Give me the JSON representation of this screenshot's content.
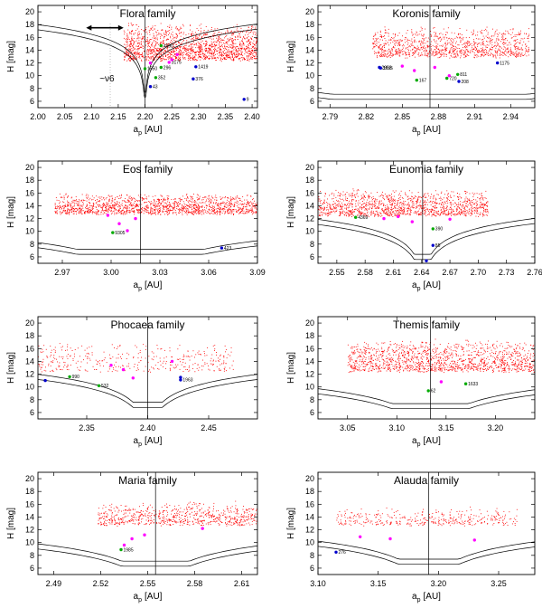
{
  "figure": {
    "description_free": true
  },
  "chart_data": [
    {
      "type": "scatter",
      "title": "Flora family",
      "xlabel_main": "a",
      "xlabel_sub": "p",
      "xlabel_unit": "[AU]",
      "ylabel": "H [mag]",
      "xlim": [
        2.0,
        2.41
      ],
      "ylim": [
        5,
        21
      ],
      "xticks": [
        2.0,
        2.05,
        2.1,
        2.15,
        2.2,
        2.25,
        2.3,
        2.35,
        2.4
      ],
      "xtick_labels": [
        "2.00",
        "2.05",
        "2.10",
        "2.15",
        "2.20",
        "2.25",
        "2.30",
        "2.35",
        "2.40"
      ],
      "yticks": [
        6,
        8,
        10,
        12,
        14,
        16,
        18,
        20
      ],
      "ytick_labels": [
        "6",
        "8",
        "10",
        "12",
        "14",
        "16",
        "18",
        "20"
      ],
      "resonance_a": 2.2,
      "cloud": {
        "xmin": 2.16,
        "xmax": 2.41,
        "ymin": 12.5,
        "ymax": 18.3,
        "n": 1700,
        "seed": 11
      },
      "v_curves": {
        "c": 2.2,
        "k": 4.4,
        "h0": 6.6,
        "offsets": [
          0,
          0.8
        ],
        "alpha": 0.52
      },
      "extra_annotations": [
        {
          "text": "~ν6",
          "x": 2.115,
          "y": 9.1,
          "size": 10
        },
        {
          "text": "arrow",
          "x1": 2.09,
          "x2": 2.16,
          "y": 17.5
        }
      ],
      "dashed_x": 2.135,
      "points": [
        {
          "x": 2.21,
          "y": 8.3,
          "color": "#0000cc",
          "label": "43"
        },
        {
          "x": 2.29,
          "y": 9.5,
          "color": "#0000cc",
          "label": "376"
        },
        {
          "x": 2.295,
          "y": 11.4,
          "color": "#0000cc",
          "label": "1419"
        },
        {
          "x": 2.385,
          "y": 6.3,
          "color": "#0000cc",
          "label": "9"
        },
        {
          "x": 2.22,
          "y": 9.7,
          "color": "#00aa00",
          "label": "352"
        },
        {
          "x": 2.2,
          "y": 11.1,
          "color": "#00aa00",
          "label": "1550"
        },
        {
          "x": 2.23,
          "y": 11.3,
          "color": "#00aa00",
          "label": "296"
        },
        {
          "x": 2.23,
          "y": 14.7,
          "color": "#00aa00",
          "label": "4590"
        },
        {
          "x": 2.245,
          "y": 12.1,
          "color": "#ff00ff",
          "label": "3175"
        },
        {
          "x": 2.25,
          "y": 12.5,
          "color": "#ff00ff",
          "label": ""
        },
        {
          "x": 2.21,
          "y": 12.0,
          "color": "#ff00ff",
          "label": ""
        },
        {
          "x": 2.26,
          "y": 13.3,
          "color": "#ff00ff",
          "label": ""
        }
      ]
    },
    {
      "type": "scatter",
      "title": "Koronis family",
      "xlabel_main": "a",
      "xlabel_sub": "p",
      "xlabel_unit": "[AU]",
      "ylabel": "H [mag]",
      "xlim": [
        2.78,
        2.96
      ],
      "ylim": [
        5,
        21
      ],
      "xticks": [
        2.79,
        2.82,
        2.85,
        2.88,
        2.91,
        2.94
      ],
      "xtick_labels": [
        "2.79",
        "2.82",
        "2.85",
        "2.88",
        "2.91",
        "2.94"
      ],
      "yticks": [
        6,
        8,
        10,
        12,
        14,
        16,
        18,
        20
      ],
      "ytick_labels": [
        "6",
        "8",
        "10",
        "12",
        "14",
        "16",
        "18",
        "20"
      ],
      "resonance_a": 2.873,
      "cloud": {
        "xmin": 2.825,
        "xmax": 2.955,
        "ymin": 13.0,
        "ymax": 17.6,
        "n": 1100,
        "seed": 23
      },
      "v_curves": {
        "c": 2.873,
        "k": 1.7,
        "h0": 6.3,
        "offsets": [
          0,
          0.8
        ],
        "alpha": 0.52
      },
      "points": [
        {
          "x": 2.831,
          "y": 11.3,
          "color": "#0000cc",
          "label": "2953"
        },
        {
          "x": 2.832,
          "y": 11.2,
          "color": "#0000cc",
          "label": "1635"
        },
        {
          "x": 2.929,
          "y": 12.0,
          "color": "#0000cc",
          "label": "1175"
        },
        {
          "x": 2.897,
          "y": 9.1,
          "color": "#0000cc",
          "label": "208"
        },
        {
          "x": 2.862,
          "y": 9.3,
          "color": "#00aa00",
          "label": "167"
        },
        {
          "x": 2.887,
          "y": 9.6,
          "color": "#00aa00",
          "label": "720"
        },
        {
          "x": 2.896,
          "y": 10.2,
          "color": "#00aa00",
          "label": "811"
        },
        {
          "x": 2.85,
          "y": 11.5,
          "color": "#ff00ff",
          "label": ""
        },
        {
          "x": 2.86,
          "y": 10.8,
          "color": "#ff00ff",
          "label": ""
        },
        {
          "x": 2.877,
          "y": 11.3,
          "color": "#ff00ff",
          "label": ""
        },
        {
          "x": 2.889,
          "y": 10.0,
          "color": "#ff00ff",
          "label": ""
        }
      ]
    },
    {
      "type": "scatter",
      "title": "Eos family",
      "xlabel_main": "a",
      "xlabel_sub": "p",
      "xlabel_unit": "[AU]",
      "ylabel": "H [mag]",
      "xlim": [
        2.955,
        3.09
      ],
      "ylim": [
        5,
        21
      ],
      "xticks": [
        2.97,
        3.0,
        3.03,
        3.06,
        3.09
      ],
      "xtick_labels": [
        "2.97",
        "3.00",
        "3.03",
        "3.06",
        "3.09"
      ],
      "yticks": [
        6,
        8,
        10,
        12,
        14,
        16,
        18,
        20
      ],
      "ytick_labels": [
        "6",
        "8",
        "10",
        "12",
        "14",
        "16",
        "18",
        "20"
      ],
      "resonance_a": 3.018,
      "cloud": {
        "xmin": 2.965,
        "xmax": 3.09,
        "ymin": 12.8,
        "ymax": 16.0,
        "n": 1500,
        "seed": 37
      },
      "v_curves": {
        "c": 3.018,
        "k": 2.2,
        "h0": 6.4,
        "offsets": [
          0,
          0.8
        ],
        "alpha": 0.52
      },
      "points": [
        {
          "x": 3.068,
          "y": 7.4,
          "color": "#0000cc",
          "label": "423"
        },
        {
          "x": 3.001,
          "y": 9.8,
          "color": "#00aa00",
          "label": "9305"
        },
        {
          "x": 3.005,
          "y": 11.2,
          "color": "#ff00ff",
          "label": ""
        },
        {
          "x": 3.01,
          "y": 10.1,
          "color": "#ff00ff",
          "label": ""
        },
        {
          "x": 3.015,
          "y": 12.0,
          "color": "#ff00ff",
          "label": ""
        },
        {
          "x": 2.998,
          "y": 12.5,
          "color": "#ff00ff",
          "label": ""
        }
      ]
    },
    {
      "type": "scatter",
      "title": "Eunomia family",
      "xlabel_main": "a",
      "xlabel_sub": "p",
      "xlabel_unit": "[AU]",
      "ylabel": "H [mag]",
      "xlim": [
        2.53,
        2.76
      ],
      "ylim": [
        5,
        21
      ],
      "xticks": [
        2.55,
        2.58,
        2.61,
        2.64,
        2.67,
        2.7,
        2.73,
        2.76
      ],
      "xtick_labels": [
        "2.55",
        "2.58",
        "2.61",
        "2.64",
        "2.67",
        "2.70",
        "2.73",
        "2.76"
      ],
      "yticks": [
        6,
        8,
        10,
        12,
        14,
        16,
        18,
        20
      ],
      "ytick_labels": [
        "6",
        "8",
        "10",
        "12",
        "14",
        "16",
        "18",
        "20"
      ],
      "resonance_a": 2.641,
      "cloud": {
        "xmin": 2.53,
        "xmax": 2.71,
        "ymin": 12.5,
        "ymax": 16.6,
        "n": 1300,
        "seed": 51
      },
      "v_curves": {
        "c": 2.641,
        "k": 3.2,
        "h0": 5.6,
        "offsets": [
          0,
          0.8
        ],
        "alpha": 0.52
      },
      "points": [
        {
          "x": 2.652,
          "y": 7.8,
          "color": "#0000cc",
          "label": "85"
        },
        {
          "x": 2.645,
          "y": 5.4,
          "color": "#0000cc",
          "label": ""
        },
        {
          "x": 2.57,
          "y": 12.2,
          "color": "#00aa00",
          "label": "4369"
        },
        {
          "x": 2.652,
          "y": 10.4,
          "color": "#00aa00",
          "label": "390"
        },
        {
          "x": 2.6,
          "y": 12.0,
          "color": "#ff00ff",
          "label": ""
        },
        {
          "x": 2.615,
          "y": 12.3,
          "color": "#ff00ff",
          "label": ""
        },
        {
          "x": 2.67,
          "y": 11.9,
          "color": "#ff00ff",
          "label": ""
        },
        {
          "x": 2.63,
          "y": 11.5,
          "color": "#ff00ff",
          "label": ""
        }
      ]
    },
    {
      "type": "scatter",
      "title": "Phocaea family",
      "xlabel_main": "a",
      "xlabel_sub": "p",
      "xlabel_unit": "[AU]",
      "ylabel": "H [mag]",
      "xlim": [
        2.31,
        2.49
      ],
      "ylim": [
        5,
        21
      ],
      "xticks": [
        2.35,
        2.4,
        2.45
      ],
      "xtick_labels": [
        "2.35",
        "2.40",
        "2.45"
      ],
      "yticks": [
        6,
        8,
        10,
        12,
        14,
        16,
        18,
        20
      ],
      "ytick_labels": [
        "6",
        "8",
        "10",
        "12",
        "14",
        "16",
        "18",
        "20"
      ],
      "resonance_a": 2.4,
      "cloud": {
        "xmin": 2.31,
        "xmax": 2.47,
        "ymin": 12.5,
        "ymax": 17.0,
        "n": 380,
        "seed": 67
      },
      "v_curves": {
        "c": 2.4,
        "k": 3.0,
        "h0": 6.8,
        "offsets": [
          0,
          0.8
        ],
        "alpha": 0.52
      },
      "points": [
        {
          "x": 2.316,
          "y": 11.0,
          "color": "#0000cc",
          "label": ""
        },
        {
          "x": 2.427,
          "y": 11.1,
          "color": "#0000cc",
          "label": "1963"
        },
        {
          "x": 2.427,
          "y": 11.5,
          "color": "#0000cc",
          "label": ""
        },
        {
          "x": 2.336,
          "y": 11.6,
          "color": "#00aa00",
          "label": "990"
        },
        {
          "x": 2.36,
          "y": 10.2,
          "color": "#00aa00",
          "label": "532"
        },
        {
          "x": 2.38,
          "y": 12.7,
          "color": "#ff00ff",
          "label": ""
        },
        {
          "x": 2.388,
          "y": 11.4,
          "color": "#ff00ff",
          "label": ""
        },
        {
          "x": 2.42,
          "y": 14.0,
          "color": "#ff00ff",
          "label": ""
        },
        {
          "x": 2.37,
          "y": 13.4,
          "color": "#ff00ff",
          "label": ""
        }
      ]
    },
    {
      "type": "scatter",
      "title": "Themis family",
      "xlabel_main": "a",
      "xlabel_sub": "p",
      "xlabel_unit": "[AU]",
      "ylabel": "H [mag]",
      "xlim": [
        3.02,
        3.24
      ],
      "ylim": [
        5,
        21
      ],
      "xticks": [
        3.05,
        3.1,
        3.15,
        3.2
      ],
      "xtick_labels": [
        "3.05",
        "3.10",
        "3.15",
        "3.20"
      ],
      "yticks": [
        6,
        8,
        10,
        12,
        14,
        16,
        18,
        20
      ],
      "ytick_labels": [
        "6",
        "8",
        "10",
        "12",
        "14",
        "16",
        "18",
        "20"
      ],
      "resonance_a": 3.134,
      "cloud": {
        "xmin": 3.05,
        "xmax": 3.24,
        "ymin": 12.5,
        "ymax": 17.4,
        "n": 1400,
        "seed": 79
      },
      "v_curves": {
        "c": 3.134,
        "k": 2.2,
        "h0": 6.6,
        "offsets": [
          0,
          0.8
        ],
        "alpha": 0.52
      },
      "points": [
        {
          "x": 3.132,
          "y": 9.4,
          "color": "#00aa00",
          "label": "62"
        },
        {
          "x": 3.17,
          "y": 10.5,
          "color": "#00aa00",
          "label": "1633"
        },
        {
          "x": 3.145,
          "y": 10.8,
          "color": "#ff00ff",
          "label": ""
        }
      ]
    },
    {
      "type": "scatter",
      "title": "Maria family",
      "xlabel_main": "a",
      "xlabel_sub": "p",
      "xlabel_unit": "[AU]",
      "ylabel": "H [mag]",
      "xlim": [
        2.48,
        2.62
      ],
      "ylim": [
        5,
        21
      ],
      "xticks": [
        2.49,
        2.52,
        2.55,
        2.58,
        2.61
      ],
      "xtick_labels": [
        "2.49",
        "2.52",
        "2.55",
        "2.58",
        "2.61"
      ],
      "yticks": [
        6,
        8,
        10,
        12,
        14,
        16,
        18,
        20
      ],
      "ytick_labels": [
        "6",
        "8",
        "10",
        "12",
        "14",
        "16",
        "18",
        "20"
      ],
      "resonance_a": 2.555,
      "cloud": {
        "xmin": 2.518,
        "xmax": 2.62,
        "ymin": 12.8,
        "ymax": 16.4,
        "n": 720,
        "seed": 91
      },
      "v_curves": {
        "c": 2.555,
        "k": 2.6,
        "h0": 6.3,
        "offsets": [
          0,
          0.8
        ],
        "alpha": 0.52
      },
      "points": [
        {
          "x": 2.533,
          "y": 8.9,
          "color": "#00aa00",
          "label": "1985"
        },
        {
          "x": 2.535,
          "y": 9.6,
          "color": "#ff00ff",
          "label": ""
        },
        {
          "x": 2.54,
          "y": 10.6,
          "color": "#ff00ff",
          "label": ""
        },
        {
          "x": 2.548,
          "y": 11.2,
          "color": "#ff00ff",
          "label": ""
        },
        {
          "x": 2.585,
          "y": 12.2,
          "color": "#ff00ff",
          "label": ""
        }
      ]
    },
    {
      "type": "scatter",
      "title": "Alauda family",
      "xlabel_main": "a",
      "xlabel_sub": "p",
      "xlabel_unit": "[AU]",
      "ylabel": "H [mag]",
      "xlim": [
        3.1,
        3.28
      ],
      "ylim": [
        5,
        21
      ],
      "xticks": [
        3.1,
        3.15,
        3.2,
        3.25
      ],
      "xtick_labels": [
        "3.10",
        "3.15",
        "3.20",
        "3.25"
      ],
      "yticks": [
        6,
        8,
        10,
        12,
        14,
        16,
        18,
        20
      ],
      "ytick_labels": [
        "6",
        "8",
        "10",
        "12",
        "14",
        "16",
        "18",
        "20"
      ],
      "resonance_a": 3.192,
      "cloud": {
        "xmin": 3.115,
        "xmax": 3.265,
        "ymin": 12.8,
        "ymax": 15.6,
        "n": 380,
        "seed": 103
      },
      "v_curves": {
        "c": 3.192,
        "k": 2.5,
        "h0": 6.6,
        "offsets": [
          0,
          0.8
        ],
        "alpha": 0.52
      },
      "points": [
        {
          "x": 3.115,
          "y": 8.5,
          "color": "#0000cc",
          "label": "276"
        },
        {
          "x": 3.135,
          "y": 10.9,
          "color": "#ff00ff",
          "label": ""
        },
        {
          "x": 3.16,
          "y": 10.6,
          "color": "#ff00ff",
          "label": ""
        },
        {
          "x": 3.23,
          "y": 10.4,
          "color": "#ff00ff",
          "label": ""
        }
      ]
    }
  ]
}
